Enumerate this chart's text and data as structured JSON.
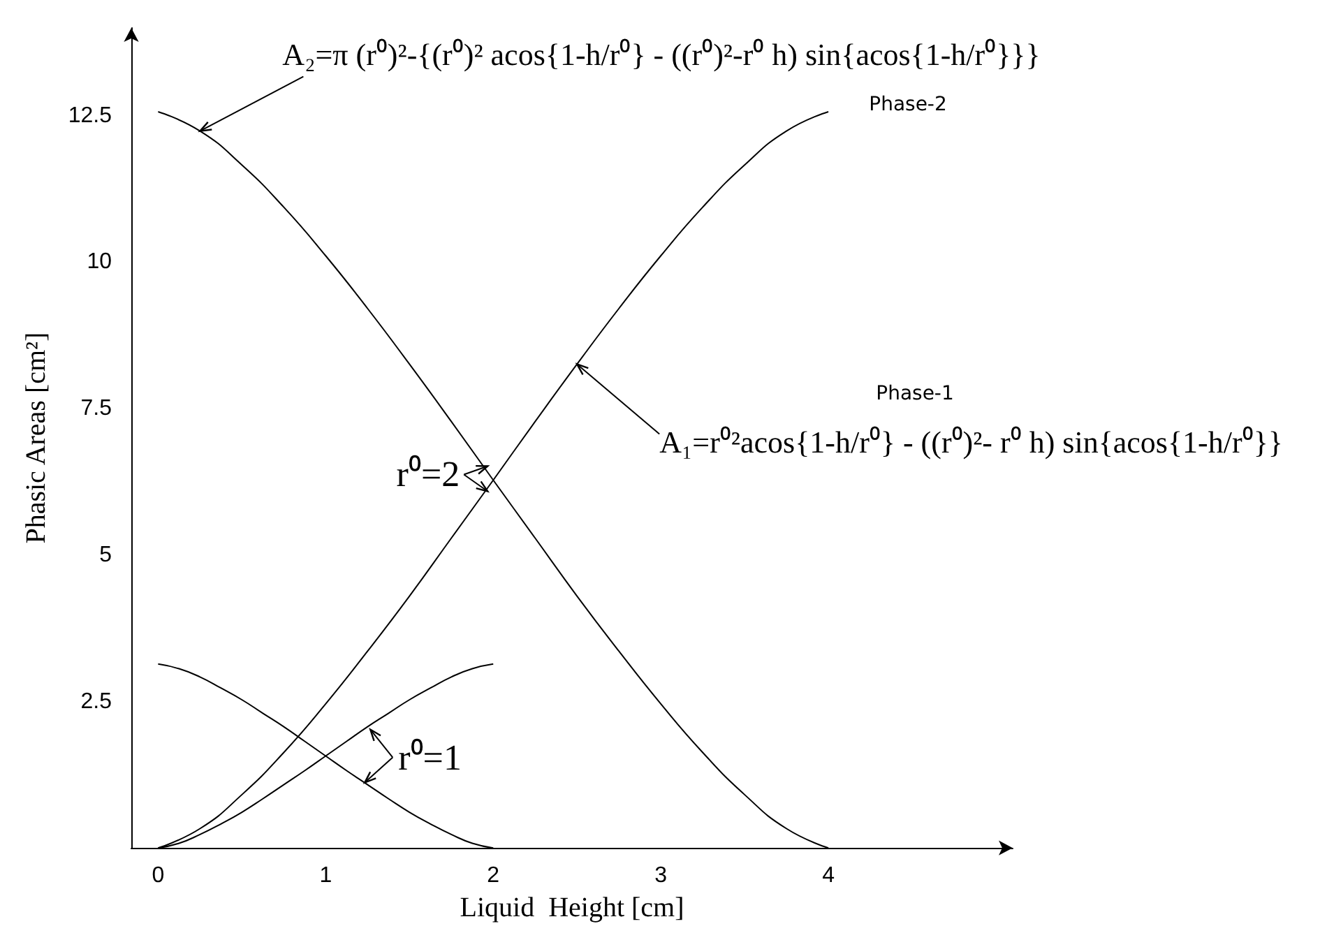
{
  "chart_data": {
    "type": "line",
    "xlabel": "Liquid  Height [cm]",
    "ylabel": "Phasic Areas [cm²]",
    "xlim": [
      -0.16,
      5.1
    ],
    "ylim": [
      0,
      14
    ],
    "xticks": [
      0,
      1,
      2,
      3,
      4
    ],
    "yticks": [
      2.5,
      5,
      7.5,
      10,
      12.5
    ],
    "marker": "none",
    "grid": false,
    "series": [
      {
        "color": "#000000",
        "x": [
          0,
          0.25,
          0.5,
          0.75,
          1,
          1.25,
          1.5,
          1.75,
          2,
          2.25,
          2.5,
          2.75,
          3,
          3.25,
          3.5,
          3.75,
          4
        ],
        "values": [
          0,
          0.33,
          0.91,
          1.63,
          2.46,
          3.36,
          4.3,
          5.29,
          6.28,
          7.28,
          8.26,
          9.21,
          10.11,
          10.94,
          11.66,
          12.24,
          12.57
        ]
      },
      {
        "color": "#000000",
        "x": [
          0,
          0.25,
          0.5,
          0.75,
          1,
          1.25,
          1.5,
          1.75,
          2,
          2.25,
          2.5,
          2.75,
          3,
          3.25,
          3.5,
          3.75,
          4
        ],
        "values": [
          12.57,
          12.24,
          11.66,
          10.94,
          10.11,
          9.21,
          8.26,
          7.28,
          6.28,
          5.29,
          4.3,
          3.36,
          2.46,
          1.63,
          0.91,
          0.33,
          0
        ]
      },
      {
        "color": "#000000",
        "x": [
          0,
          0.125,
          0.25,
          0.375,
          0.5,
          0.625,
          0.75,
          0.875,
          1,
          1.125,
          1.25,
          1.375,
          1.5,
          1.625,
          1.75,
          1.875,
          2
        ],
        "values": [
          0,
          0.08,
          0.23,
          0.41,
          0.61,
          0.84,
          1.08,
          1.32,
          1.57,
          1.82,
          2.07,
          2.3,
          2.53,
          2.73,
          2.92,
          3.06,
          3.14
        ]
      },
      {
        "color": "#000000",
        "x": [
          0,
          0.125,
          0.25,
          0.375,
          0.5,
          0.625,
          0.75,
          0.875,
          1,
          1.125,
          1.25,
          1.375,
          1.5,
          1.625,
          1.75,
          1.875,
          2
        ],
        "values": [
          3.14,
          3.06,
          2.92,
          2.73,
          2.53,
          2.3,
          2.07,
          1.82,
          1.57,
          1.32,
          1.08,
          0.84,
          0.61,
          0.41,
          0.23,
          0.08,
          0
        ]
      }
    ],
    "annotations": [
      {
        "text": "A₂=π (r⁰)²-{(r⁰)² acos{1-h/r⁰} - ((r⁰)²-r⁰ h) sin{acos{1-h/r⁰}}}",
        "x": 0.25,
        "y": 12.24
      },
      "Phase-2",
      {
        "text": "A₁=r⁰²acos{1-h/r⁰} - ((r⁰)²- r⁰ h) sin{acos{1-h/r⁰}}",
        "x": 2.5,
        "y": 8.26
      },
      "Phase-1",
      {
        "text": "r⁰=2",
        "x": 2,
        "y": 6.28
      },
      {
        "text": "r⁰=1",
        "x": 1.25,
        "y": 2.07
      }
    ]
  }
}
